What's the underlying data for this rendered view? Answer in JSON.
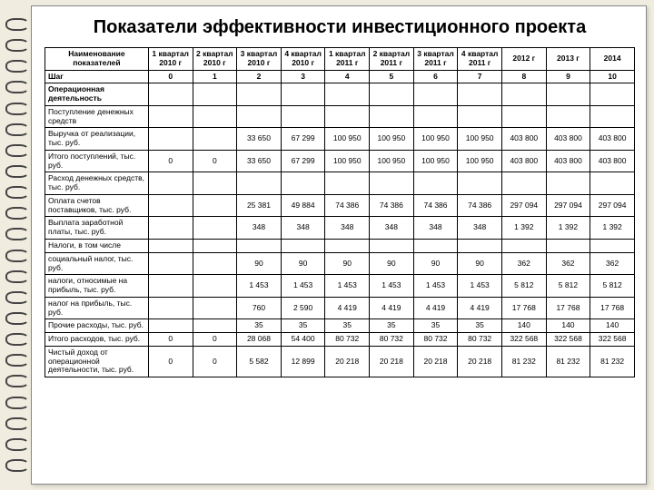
{
  "title": "Показатели эффективности инвестиционного проекта",
  "columns": [
    "Наименование показателей",
    "1 квартал 2010 г",
    "2 квартал 2010 г",
    "3 квартал 2010 г",
    "4 квартал 2010 г",
    "1 квартал 2011 г",
    "2 квартал 2011 г",
    "3 квартал 2011 г",
    "4 квартал 2011 г",
    "2012 г",
    "2013 г",
    "2014"
  ],
  "rows": [
    {
      "label": "Шаг",
      "v": [
        "0",
        "1",
        "2",
        "3",
        "4",
        "5",
        "6",
        "7",
        "8",
        "9",
        "10"
      ],
      "bold": true
    },
    {
      "label": "Операционная деятельность",
      "v": [
        "",
        "",
        "",
        "",
        "",
        "",
        "",
        "",
        "",
        "",
        ""
      ],
      "bold": true
    },
    {
      "label": "Поступление денежных средств",
      "v": [
        "",
        "",
        "",
        "",
        "",
        "",
        "",
        "",
        "",
        "",
        ""
      ]
    },
    {
      "label": "Выручка от реализации, тыс. руб.",
      "v": [
        "",
        "",
        "33 650",
        "67 299",
        "100 950",
        "100 950",
        "100 950",
        "100 950",
        "403 800",
        "403 800",
        "403 800"
      ]
    },
    {
      "label": "Итого поступлений, тыс. руб.",
      "v": [
        "0",
        "0",
        "33 650",
        "67 299",
        "100 950",
        "100 950",
        "100 950",
        "100 950",
        "403 800",
        "403 800",
        "403 800"
      ]
    },
    {
      "label": "Расход денежных средств, тыс. руб.",
      "v": [
        "",
        "",
        "",
        "",
        "",
        "",
        "",
        "",
        "",
        "",
        ""
      ]
    },
    {
      "label": "Оплата счетов поставщиков, тыс. руб.",
      "v": [
        "",
        "",
        "25 381",
        "49 884",
        "74 386",
        "74 386",
        "74 386",
        "74 386",
        "297 094",
        "297 094",
        "297 094"
      ]
    },
    {
      "label": "Выплата заработной платы, тыс. руб.",
      "v": [
        "",
        "",
        "348",
        "348",
        "348",
        "348",
        "348",
        "348",
        "1 392",
        "1 392",
        "1 392"
      ]
    },
    {
      "label": "Налоги, в том числе",
      "v": [
        "",
        "",
        "",
        "",
        "",
        "",
        "",
        "",
        "",
        "",
        ""
      ]
    },
    {
      "label": "социальный налог, тыс. руб.",
      "v": [
        "",
        "",
        "90",
        "90",
        "90",
        "90",
        "90",
        "90",
        "362",
        "362",
        "362"
      ]
    },
    {
      "label": "налоги, относимые на прибыль, тыс. руб.",
      "v": [
        "",
        "",
        "1 453",
        "1 453",
        "1 453",
        "1 453",
        "1 453",
        "1 453",
        "5 812",
        "5 812",
        "5 812"
      ]
    },
    {
      "label": "налог на прибыль, тыс. руб.",
      "v": [
        "",
        "",
        "760",
        "2 590",
        "4 419",
        "4 419",
        "4 419",
        "4 419",
        "17 768",
        "17 768",
        "17 768"
      ]
    },
    {
      "label": "Прочие расходы, тыс. руб.",
      "v": [
        "",
        "",
        "35",
        "35",
        "35",
        "35",
        "35",
        "35",
        "140",
        "140",
        "140"
      ]
    },
    {
      "label": "Итого расходов, тыс. руб.",
      "v": [
        "0",
        "0",
        "28 068",
        "54 400",
        "80 732",
        "80 732",
        "80 732",
        "80 732",
        "322 568",
        "322 568",
        "322 568"
      ]
    },
    {
      "label": "Чистый доход от операционной деятельности, тыс. руб.",
      "v": [
        "0",
        "0",
        "5 582",
        "12 899",
        "20 218",
        "20 218",
        "20 218",
        "20 218",
        "81 232",
        "81 232",
        "81 232"
      ]
    }
  ]
}
